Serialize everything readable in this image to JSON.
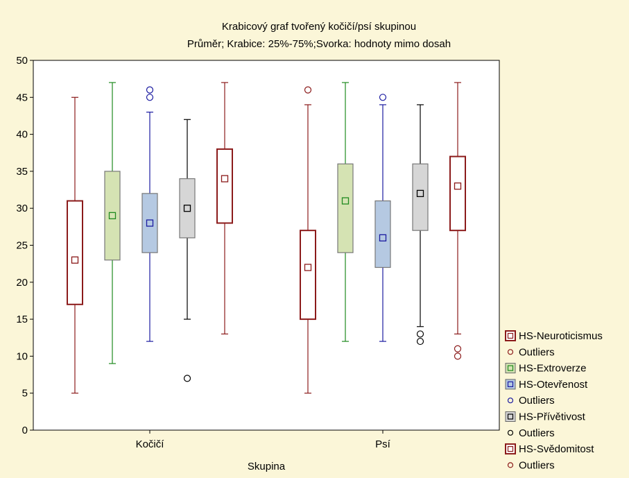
{
  "chart_data": {
    "type": "box",
    "title": "Krabicový graf tvořený kočičí/psí skupinou",
    "subtitle": "Průměr; Krabice: 25%-75%;Svorka: hodnoty mimo dosah",
    "xlabel": "Skupina",
    "ylabel": "",
    "ylim": [
      0,
      50
    ],
    "yticks": [
      0,
      5,
      10,
      15,
      20,
      25,
      30,
      35,
      40,
      45,
      50
    ],
    "categories": [
      "Kočičí",
      "Psí"
    ],
    "grid": false,
    "legend_position": "right",
    "series": [
      {
        "name": "HS-Neuroticismus",
        "outlier_label": "Outliers",
        "box_fill": "#ffffff",
        "color": "#8b1a1a",
        "data": [
          {
            "mean": 23,
            "q1": 17,
            "q3": 31,
            "whisker_low": 5,
            "whisker_high": 45,
            "outliers": []
          },
          {
            "mean": 22,
            "q1": 15,
            "q3": 27,
            "whisker_low": 5,
            "whisker_high": 44,
            "outliers": [
              46
            ]
          }
        ]
      },
      {
        "name": "HS-Extroverze",
        "outlier_label": null,
        "box_fill": "#d5e3b3",
        "color": "#1f8a1f",
        "data": [
          {
            "mean": 29,
            "q1": 23,
            "q3": 35,
            "whisker_low": 9,
            "whisker_high": 47,
            "outliers": []
          },
          {
            "mean": 31,
            "q1": 24,
            "q3": 36,
            "whisker_low": 12,
            "whisker_high": 47,
            "outliers": []
          }
        ]
      },
      {
        "name": "HS-Otevřenost",
        "outlier_label": "Outliers",
        "box_fill": "#b5c9e2",
        "color": "#1a1aa0",
        "data": [
          {
            "mean": 28,
            "q1": 24,
            "q3": 32,
            "whisker_low": 12,
            "whisker_high": 43,
            "outliers": [
              45,
              46
            ]
          },
          {
            "mean": 26,
            "q1": 22,
            "q3": 31,
            "whisker_low": 12,
            "whisker_high": 44,
            "outliers": [
              45
            ]
          }
        ]
      },
      {
        "name": "HS-Přívětivost",
        "outlier_label": "Outliers",
        "box_fill": "#d6d6d6",
        "color": "#000000",
        "data": [
          {
            "mean": 30,
            "q1": 26,
            "q3": 34,
            "whisker_low": 15,
            "whisker_high": 42,
            "outliers": [
              7
            ]
          },
          {
            "mean": 32,
            "q1": 27,
            "q3": 36,
            "whisker_low": 14,
            "whisker_high": 44,
            "outliers": [
              13,
              12
            ]
          }
        ]
      },
      {
        "name": "HS-Svědomitost",
        "outlier_label": "Outliers",
        "box_fill": "#ffffff",
        "color": "#8b1a1a",
        "data": [
          {
            "mean": 34,
            "q1": 28,
            "q3": 38,
            "whisker_low": 13,
            "whisker_high": 47,
            "outliers": []
          },
          {
            "mean": 33,
            "q1": 27,
            "q3": 37,
            "whisker_low": 13,
            "whisker_high": 47,
            "outliers": [
              11,
              10
            ]
          }
        ]
      }
    ]
  }
}
